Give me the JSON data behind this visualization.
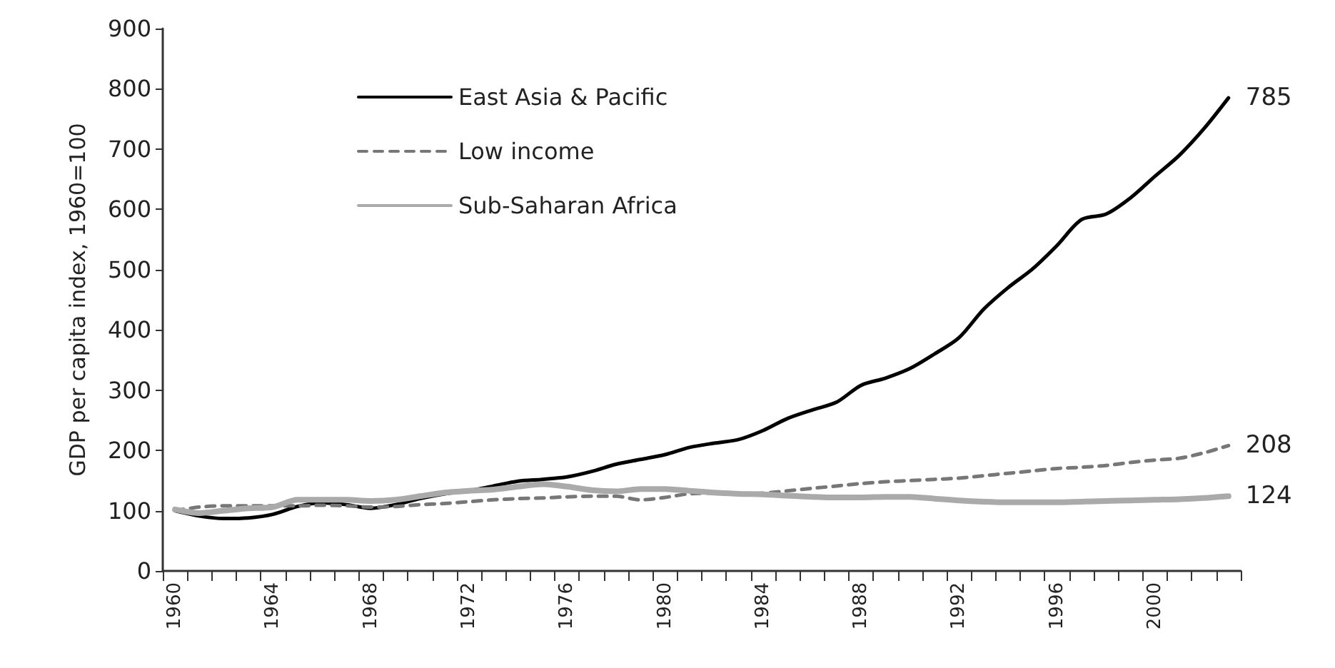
{
  "chart_data": {
    "type": "line",
    "ylabel": "GDP per capita index, 1960=100",
    "categories": [
      "1960",
      null,
      null,
      null,
      "1964",
      null,
      null,
      null,
      "1968",
      null,
      null,
      null,
      "1972",
      null,
      null,
      null,
      "1976",
      null,
      null,
      null,
      "1980",
      null,
      null,
      null,
      "1984",
      null,
      null,
      null,
      "1988",
      null,
      null,
      null,
      "1992",
      null,
      null,
      null,
      "1996",
      null,
      null,
      null,
      "2000",
      null,
      null,
      null
    ],
    "ylim": [
      0,
      900
    ],
    "yticks": [
      0,
      100,
      200,
      300,
      400,
      500,
      600,
      700,
      800,
      900
    ],
    "grid": false,
    "legend": "top left",
    "marker": "none",
    "series": [
      {
        "name": "East Asia & Pacific",
        "color": "#000000",
        "line_style": "solid",
        "values": [
          100,
          91,
          87,
          88,
          94,
          107,
          113,
          110,
          104,
          110,
          120,
          128,
          133,
          141,
          149,
          152,
          156,
          165,
          177,
          185,
          193,
          205,
          212,
          218,
          233,
          253,
          267,
          280,
          308,
          320,
          336,
          360,
          387,
          434,
          470,
          501,
          540,
          583,
          592,
          619,
          655,
          690,
          734,
          785
        ],
        "value_labels": [
          null,
          null,
          null,
          null,
          null,
          null,
          null,
          null,
          null,
          null,
          null,
          null,
          null,
          null,
          null,
          null,
          null,
          null,
          null,
          null,
          null,
          null,
          null,
          null,
          null,
          null,
          null,
          null,
          null,
          null,
          null,
          null,
          null,
          null,
          null,
          null,
          null,
          null,
          null,
          null,
          null,
          null,
          null,
          "785"
        ]
      },
      {
        "name": "Low income",
        "color": "#777777",
        "line_style": "dashed",
        "values": [
          100,
          106,
          108,
          108,
          108,
          108,
          109,
          108,
          106,
          107,
          110,
          112,
          115,
          118,
          120,
          121,
          123,
          124,
          124,
          118,
          122,
          128,
          129,
          128,
          129,
          133,
          137,
          141,
          145,
          148,
          150,
          152,
          154,
          158,
          162,
          166,
          170,
          172,
          175,
          180,
          184,
          187,
          196,
          208
        ],
        "value_labels": [
          null,
          null,
          null,
          null,
          null,
          null,
          null,
          null,
          null,
          null,
          null,
          null,
          null,
          null,
          null,
          null,
          null,
          null,
          null,
          null,
          null,
          null,
          null,
          null,
          null,
          null,
          null,
          null,
          null,
          null,
          null,
          null,
          null,
          null,
          null,
          null,
          null,
          null,
          null,
          null,
          null,
          null,
          null,
          "208"
        ]
      },
      {
        "name": "Sub-Saharan Africa",
        "color": "#aaaaaa",
        "line_style": "solid",
        "values": [
          102,
          96,
          100,
          104,
          106,
          118,
          118,
          118,
          116,
          118,
          124,
          130,
          133,
          135,
          140,
          144,
          140,
          134,
          132,
          136,
          136,
          133,
          130,
          128,
          127,
          125,
          123,
          122,
          122,
          123,
          123,
          120,
          117,
          115,
          114,
          114,
          114,
          115,
          116,
          117,
          118,
          119,
          121,
          124
        ],
        "value_labels": [
          null,
          null,
          null,
          null,
          null,
          null,
          null,
          null,
          null,
          null,
          null,
          null,
          null,
          null,
          null,
          null,
          null,
          null,
          null,
          null,
          null,
          null,
          null,
          null,
          null,
          null,
          null,
          null,
          null,
          null,
          null,
          null,
          null,
          null,
          null,
          null,
          null,
          null,
          null,
          null,
          null,
          null,
          null,
          "124"
        ]
      }
    ]
  }
}
